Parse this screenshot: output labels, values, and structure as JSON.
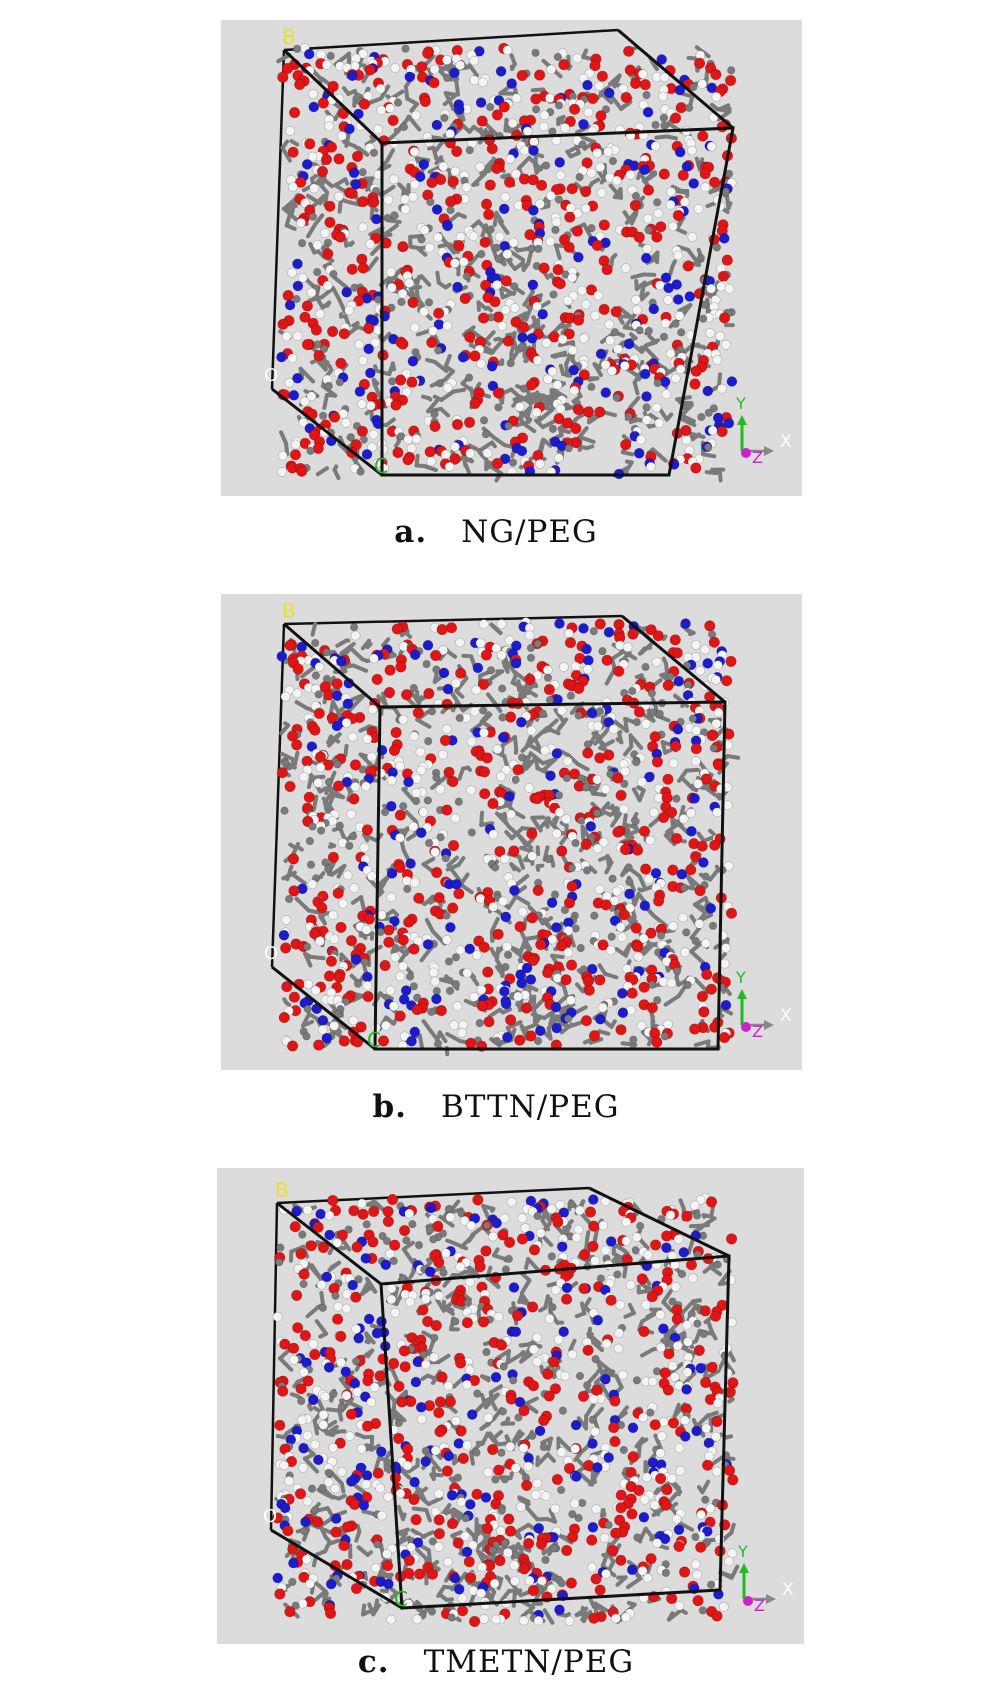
{
  "colors": {
    "background": "#dcdcdc",
    "carbon": "#7a7a7a",
    "oxygen": "#e01515",
    "nitrogen": "#1c1ccc",
    "hydrogen": "#f4f4f4",
    "cell_edge": "#111111",
    "axis_y": "#22bb22",
    "axis_z": "#cc22cc",
    "axis_x": "#ffffff"
  },
  "panels": [
    {
      "label": "a.",
      "name": "NG/PEG",
      "corner_labels": {
        "b": "B",
        "o": "O",
        "c": "C"
      },
      "axes": {
        "y": "Y",
        "x": "X",
        "z": "Z"
      }
    },
    {
      "label": "b.",
      "name": "BTTN/PEG",
      "corner_labels": {
        "b": "B",
        "o": "O",
        "c": "C"
      },
      "axes": {
        "y": "Y",
        "x": "X",
        "z": "Z"
      }
    },
    {
      "label": "c.",
      "name": "TMETN/PEG",
      "corner_labels": {
        "b": "B",
        "o": "O",
        "c": "C"
      },
      "axes": {
        "y": "Y",
        "x": "X",
        "z": "Z"
      }
    }
  ]
}
